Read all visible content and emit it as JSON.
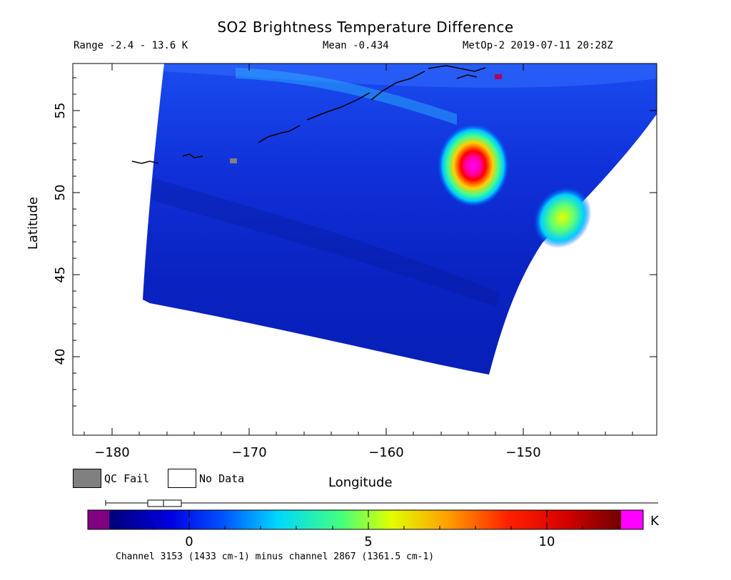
{
  "header": {
    "title": "SO2 Brightness Temperature Difference",
    "range": "Range -2.4 - 13.6 K",
    "mean": "Mean -0.434",
    "satellite_time": "MetOp-2 2019-07-11 20:28Z"
  },
  "axes": {
    "xlabel": "Longitude",
    "ylabel": "Latitude",
    "x_ticks": [
      -180,
      -170,
      -160,
      -150
    ],
    "y_ticks": [
      40,
      45,
      50,
      55
    ],
    "x_tick_labels": [
      "−180",
      "−170",
      "−160",
      "−150"
    ],
    "y_tick_labels": [
      "40",
      "45",
      "50",
      "55"
    ],
    "xlim": [
      -183,
      -141
    ],
    "ylim": [
      35,
      58
    ]
  },
  "legend": {
    "qc_fail_label": "QC Fail",
    "no_data_label": "No Data",
    "qc_fail_color": "#808080",
    "no_data_color": "#ffffff"
  },
  "colorbar": {
    "unit": "K",
    "range": [
      -1.5,
      12
    ],
    "tick_values": [
      0,
      5,
      10
    ],
    "tick_labels": [
      "0",
      "5",
      "10"
    ],
    "low_out_color": "#800080",
    "high_out_color": "#ff00ff",
    "box_plot": {
      "whisker_low": -2.4,
      "q1": -1.2,
      "median": -0.75,
      "q3": -0.3,
      "whisker_high": 13.6
    },
    "note": "Channel 3153 (1433 cm-1) minus channel 2867 (1361.5 cm-1)"
  },
  "map": {
    "background_value": -0.434,
    "swath_outline": "curved satellite swath",
    "hotspots": [
      {
        "lon": -154.3,
        "lat": 51.8,
        "peak_k": 13.6,
        "spread_deg": 1.2
      },
      {
        "lon": -147.0,
        "lat": 47.8,
        "peak_k": 6.5,
        "spread_deg": 0.8
      }
    ],
    "qc_fail_pixels": [
      {
        "lon": -171.0,
        "lat": 51.9
      }
    ]
  }
}
